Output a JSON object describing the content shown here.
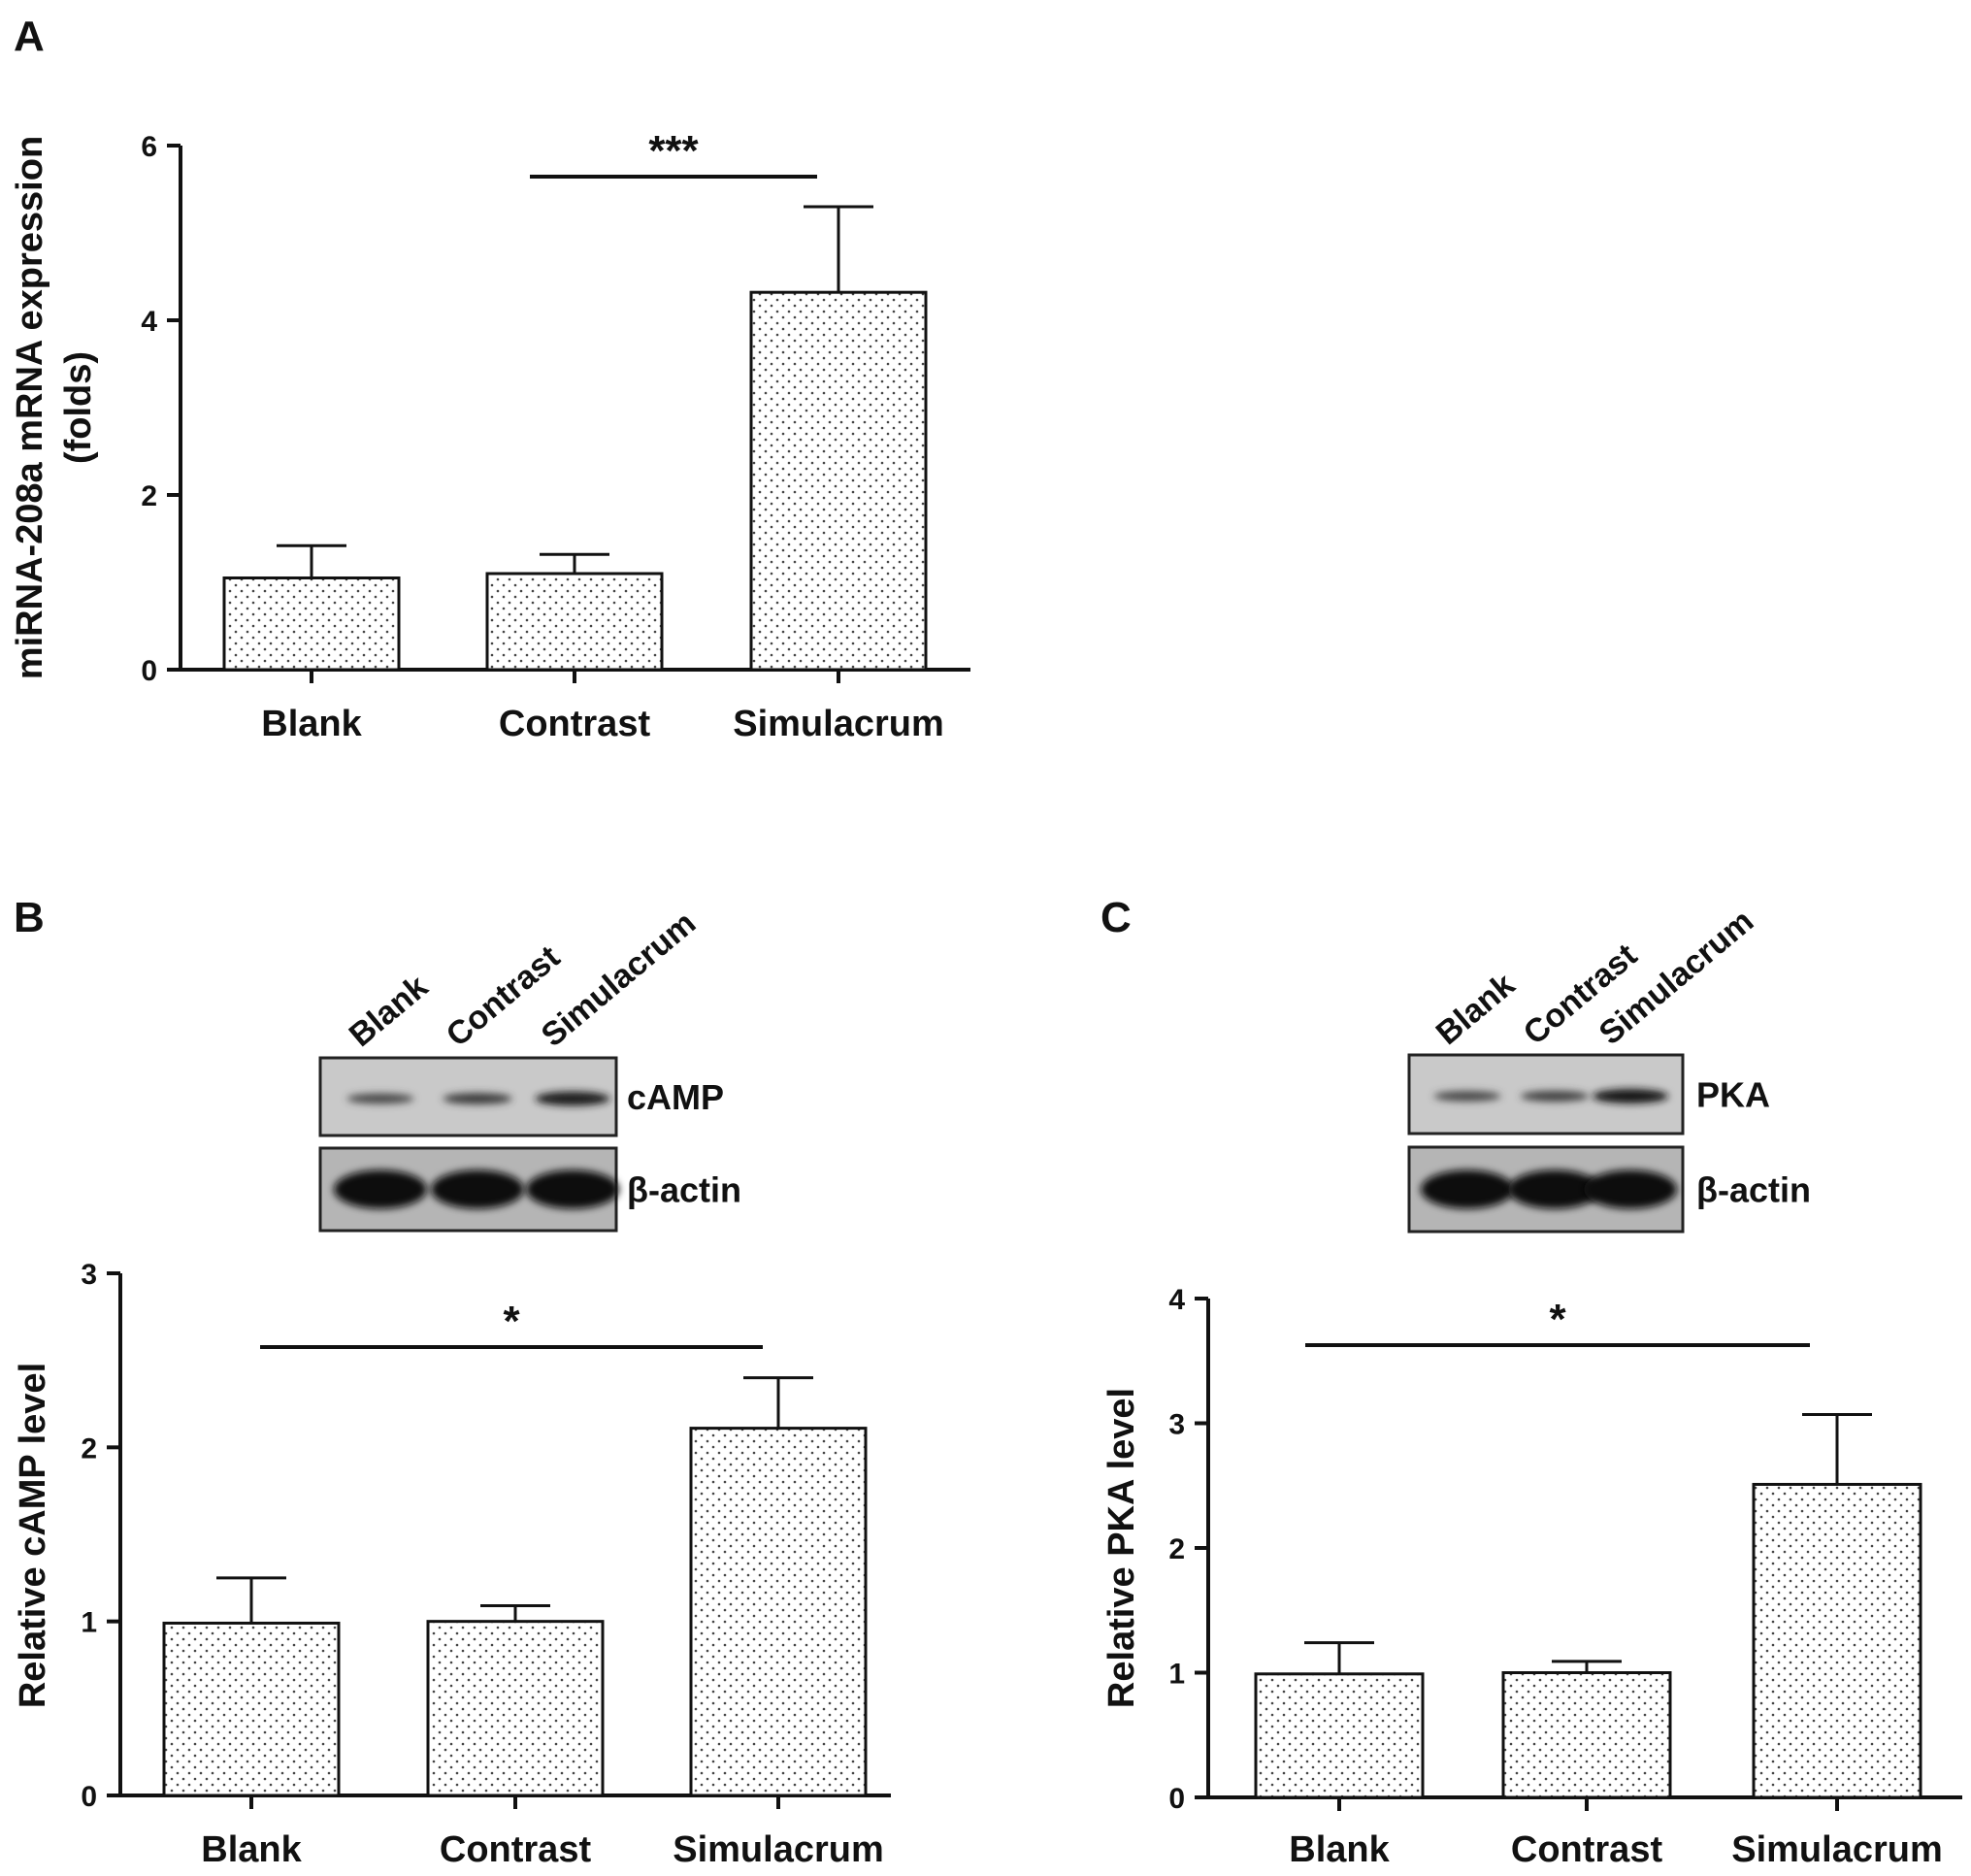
{
  "chart_data": [
    {
      "panel": "A",
      "type": "bar",
      "categories": [
        "Blank",
        "Contrast",
        "Simulacrum"
      ],
      "values": [
        1.05,
        1.1,
        4.32
      ],
      "errors": [
        0.37,
        0.22,
        0.98
      ],
      "ylabel_lines": [
        "miRNA-208a mRNA expression",
        "(folds)"
      ],
      "ylim": [
        0,
        6
      ],
      "yticks": [
        "0",
        "2",
        "4",
        "6"
      ],
      "ytick_values": [
        0,
        2,
        4,
        6
      ],
      "significance": {
        "from": 1,
        "to": 2,
        "label": "***"
      }
    },
    {
      "panel": "B",
      "type": "bar",
      "categories": [
        "Blank",
        "Contrast",
        "Simulacrum"
      ],
      "values": [
        0.99,
        1.0,
        2.11
      ],
      "errors": [
        0.26,
        0.09,
        0.29
      ],
      "ylabel_lines": [
        "Relative cAMP level"
      ],
      "ylim": [
        0,
        3
      ],
      "yticks": [
        "0",
        "1",
        "2",
        "3"
      ],
      "ytick_values": [
        0,
        1,
        2,
        3
      ],
      "significance": {
        "from": 0,
        "to": 2,
        "label": "*"
      },
      "blot": {
        "lanes": [
          "Blank",
          "Contrast",
          "Simulacrum"
        ],
        "target": "cAMP",
        "control": "β-actin",
        "target_intensity": [
          0.45,
          0.55,
          0.85
        ],
        "control_intensity": [
          1,
          1,
          1
        ]
      }
    },
    {
      "panel": "C",
      "type": "bar",
      "categories": [
        "Blank",
        "Contrast",
        "Simulacrum"
      ],
      "values": [
        0.99,
        1.0,
        2.51
      ],
      "errors": [
        0.25,
        0.09,
        0.56
      ],
      "ylabel_lines": [
        "Relative PKA level"
      ],
      "ylim": [
        0,
        4
      ],
      "yticks": [
        "0",
        "1",
        "2",
        "3",
        "4"
      ],
      "ytick_values": [
        0,
        1,
        2,
        3,
        4
      ],
      "significance": {
        "from": 0,
        "to": 2,
        "label": "*"
      },
      "blot": {
        "lanes": [
          "Blank",
          "Contrast",
          "Simulacrum"
        ],
        "target": "PKA",
        "control": "β-actin",
        "target_intensity": [
          0.45,
          0.5,
          0.9
        ],
        "control_intensity": [
          1,
          1,
          1
        ]
      }
    }
  ]
}
